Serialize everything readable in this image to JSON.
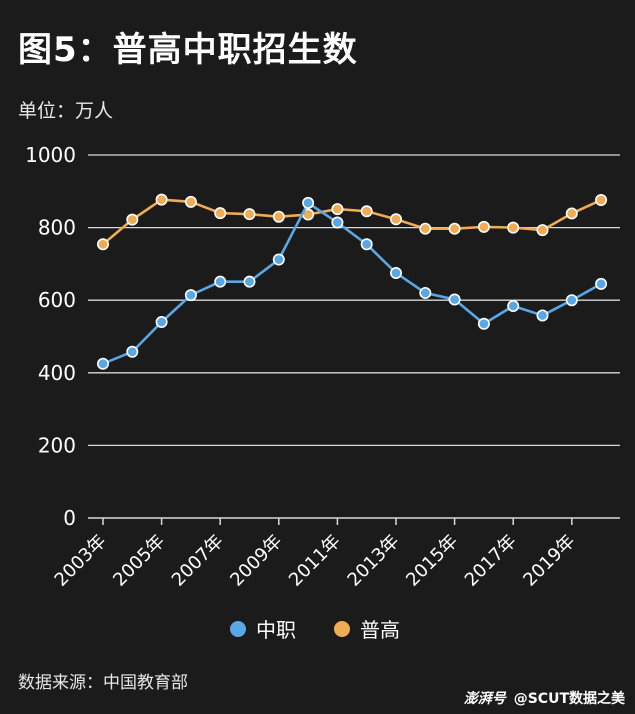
{
  "title": "图5：普高中职招生数",
  "unit_label": "单位：万人",
  "source": "数据来源：中国教育部",
  "brand": {
    "logo": "澎湃号",
    "handle": "@SCUT数据之美"
  },
  "colors": {
    "background": "#1b1b1b",
    "zhongzhi": "#5aa7e6",
    "pugao": "#f0ab55",
    "grid": "#d9d9d9"
  },
  "chart_data": {
    "type": "line",
    "x": [
      2003,
      2004,
      2005,
      2006,
      2007,
      2008,
      2009,
      2010,
      2011,
      2012,
      2013,
      2014,
      2015,
      2016,
      2017,
      2018,
      2019,
      2020
    ],
    "x_tick_labels": [
      "2003年",
      "2005年",
      "2007年",
      "2009年",
      "2011年",
      "2013年",
      "2015年",
      "2017年",
      "2019年"
    ],
    "x_tick_values": [
      2003,
      2005,
      2007,
      2009,
      2011,
      2013,
      2015,
      2017,
      2019
    ],
    "ylim": [
      0,
      1000
    ],
    "y_ticks": [
      0,
      200,
      400,
      600,
      800,
      1000
    ],
    "grid": true,
    "legend_position": "bottom",
    "series": [
      {
        "name": "中职",
        "color": "#5aa7e6",
        "values": [
          425,
          458,
          540,
          614,
          651,
          651,
          712,
          868,
          814,
          754,
          675,
          620,
          602,
          535,
          584,
          558,
          600,
          645
        ]
      },
      {
        "name": "普高",
        "color": "#f0ab55",
        "values": [
          754,
          822,
          877,
          871,
          840,
          837,
          830,
          836,
          851,
          845,
          823,
          797,
          797,
          802,
          800,
          793,
          839,
          876
        ]
      }
    ]
  }
}
